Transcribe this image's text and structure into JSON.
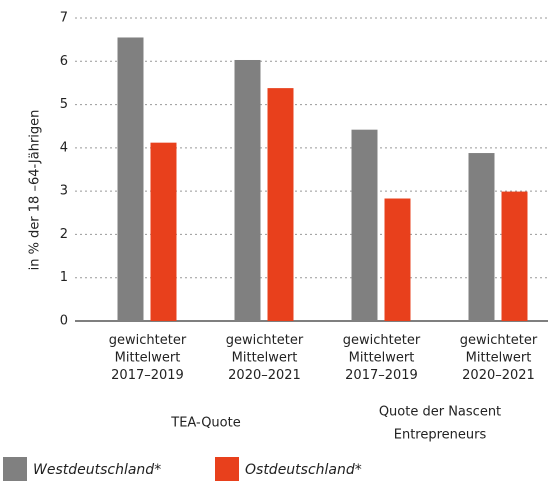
{
  "chart_data": {
    "type": "bar",
    "y_label": "in % der 18 –64-Jährigen",
    "categories": [
      "gewichteter\nMittelwert\n2017–2019",
      "gewichteter\nMittelwert\n2020–2021",
      "gewichteter\nMittelwert\n2017–2019",
      "gewichteter\nMittelwert\n2020–2021"
    ],
    "groups": [
      "TEA-Quote",
      "Quote der Nascent\nEntrepreneurs"
    ],
    "series": [
      {
        "name": "Westdeutschland*",
        "color": "#808080",
        "values": [
          6.55,
          6.03,
          4.42,
          3.88
        ]
      },
      {
        "name": "Ostdeutschland*",
        "color": "#e8401c",
        "values": [
          4.12,
          5.38,
          2.83,
          2.99
        ]
      }
    ],
    "ylim": [
      0,
      7
    ],
    "yticks": [
      0,
      1,
      2,
      3,
      4,
      5,
      6,
      7
    ],
    "grid": true
  }
}
